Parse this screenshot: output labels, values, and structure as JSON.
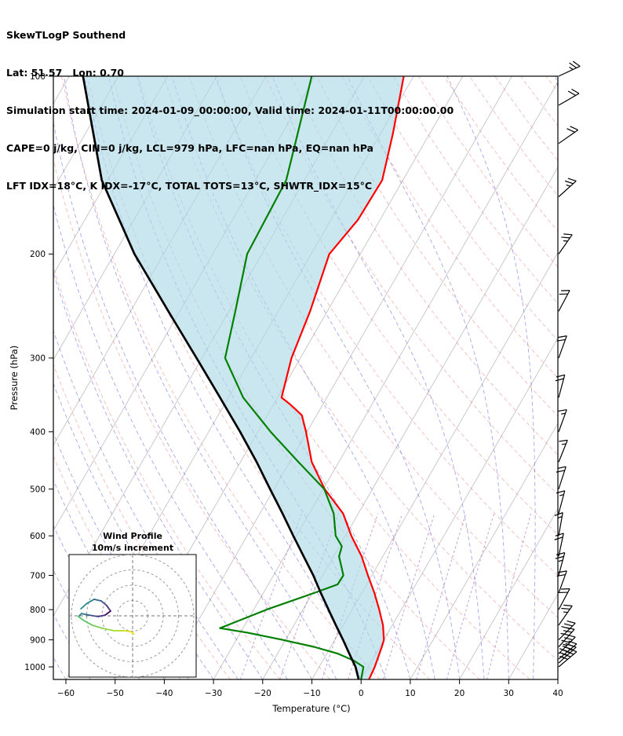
{
  "header": {
    "title": "SkewTLogP Southend",
    "location": "Lat: 51.57   Lon: 0.70",
    "times": "Simulation start time: 2024-01-09_00:00:00, Valid time: 2024-01-11T00:00:00.00",
    "indices_line1": "CAPE=0 j/kg, CIN=0 j/kg, LCL=979 hPa, LFC=nan hPa, EQ=nan hPa",
    "indices_line2": "LFT IDX=18°C, K IDX=-17°C, TOTAL TOTS=13°C, SHWTR_IDX=15°C"
  },
  "chart_data": {
    "type": "line",
    "subtype": "skewT_logP_sounding",
    "title": "SkewTLogP Southend",
    "xlabel": "Temperature (°C)",
    "ylabel": "Pressure (hPa)",
    "x_ticks": [
      -60,
      -50,
      -40,
      -30,
      -20,
      -10,
      0,
      10,
      20,
      30,
      40
    ],
    "y_ticks": [
      100,
      200,
      300,
      400,
      500,
      600,
      700,
      800,
      900,
      1000
    ],
    "xlim": [
      -62.5,
      40
    ],
    "pressure_lim": [
      100,
      1050
    ],
    "skew_rotation_deg": 30,
    "series": [
      {
        "name": "temperature",
        "color": "#ff0000",
        "units": [
          "hPa",
          "°C"
        ],
        "points": [
          [
            1050,
            1.6
          ],
          [
            1000,
            1.3
          ],
          [
            950,
            0.7
          ],
          [
            925,
            0.4
          ],
          [
            900,
            0.0
          ],
          [
            850,
            -1.9
          ],
          [
            800,
            -4.5
          ],
          [
            750,
            -7.4
          ],
          [
            700,
            -10.8
          ],
          [
            650,
            -14.3
          ],
          [
            600,
            -18.8
          ],
          [
            550,
            -23.1
          ],
          [
            500,
            -29.7
          ],
          [
            450,
            -35.5
          ],
          [
            400,
            -40.2
          ],
          [
            375,
            -43.0
          ],
          [
            360,
            -46.5
          ],
          [
            350,
            -49.2
          ],
          [
            300,
            -51.8
          ],
          [
            250,
            -53.5
          ],
          [
            200,
            -56.3
          ],
          [
            175,
            -54.5
          ],
          [
            150,
            -54.2
          ],
          [
            125,
            -57.5
          ],
          [
            100,
            -62.0
          ]
        ]
      },
      {
        "name": "dewpoint",
        "color": "#008000",
        "units": [
          "hPa",
          "°C"
        ],
        "points": [
          [
            1050,
            0.0
          ],
          [
            1000,
            -1.0
          ],
          [
            975,
            -3.8
          ],
          [
            950,
            -7.7
          ],
          [
            925,
            -13.4
          ],
          [
            900,
            -20.6
          ],
          [
            875,
            -28.6
          ],
          [
            860,
            -34.7
          ],
          [
            850,
            -33.5
          ],
          [
            800,
            -27.4
          ],
          [
            750,
            -19.7
          ],
          [
            725,
            -15.9
          ],
          [
            700,
            -15.8
          ],
          [
            650,
            -18.9
          ],
          [
            625,
            -19.5
          ],
          [
            600,
            -22.0
          ],
          [
            550,
            -25.0
          ],
          [
            500,
            -29.8
          ],
          [
            450,
            -38.2
          ],
          [
            400,
            -47.4
          ],
          [
            350,
            -57.0
          ],
          [
            300,
            -65.3
          ],
          [
            250,
            -68.7
          ],
          [
            200,
            -73.0
          ],
          [
            150,
            -73.7
          ],
          [
            100,
            -80.7
          ]
        ]
      },
      {
        "name": "parcel_profile",
        "color": "#000000",
        "units": [
          "hPa",
          "°C"
        ],
        "points": [
          [
            1050,
            -0.5
          ],
          [
            1000,
            -2.6
          ],
          [
            950,
            -5.4
          ],
          [
            900,
            -8.3
          ],
          [
            850,
            -11.5
          ],
          [
            800,
            -14.8
          ],
          [
            750,
            -18.3
          ],
          [
            700,
            -21.9
          ],
          [
            650,
            -26.1
          ],
          [
            600,
            -30.6
          ],
          [
            550,
            -35.4
          ],
          [
            500,
            -40.8
          ],
          [
            450,
            -46.7
          ],
          [
            400,
            -53.6
          ],
          [
            350,
            -61.7
          ],
          [
            300,
            -71.1
          ],
          [
            250,
            -82.3
          ],
          [
            200,
            -95.9
          ],
          [
            150,
            -111.2
          ],
          [
            100,
            -127.2
          ]
        ]
      }
    ],
    "shaded_region": {
      "between": [
        "parcel_profile",
        "temperature"
      ],
      "color": "#add8e6",
      "opacity": 0.65
    },
    "background": {
      "isotherms": {
        "color": "#8a8a8a",
        "start": -130,
        "end": 40,
        "step": 10
      },
      "dry_adiabats": {
        "color": "#e05555",
        "start": -40,
        "end": 200,
        "step": 10
      },
      "moist_adiabats": {
        "color": "#3a3ad1",
        "start": -60,
        "end": 60,
        "step": 5
      },
      "mixing_ratio_lines": {
        "color": "#8e44ad",
        "values_g_kg": [
          0.5,
          1,
          2,
          3,
          5,
          8,
          12,
          20
        ]
      }
    },
    "wind_barbs": {
      "units": "kt",
      "levels_columns": [
        "pressure_hPa",
        "speed_kt",
        "direction_deg"
      ],
      "levels": [
        [
          1000,
          40,
          50
        ],
        [
          985,
          45,
          48
        ],
        [
          970,
          40,
          50
        ],
        [
          950,
          35,
          45
        ],
        [
          925,
          30,
          42
        ],
        [
          900,
          30,
          45
        ],
        [
          850,
          25,
          35
        ],
        [
          800,
          20,
          28
        ],
        [
          750,
          20,
          20
        ],
        [
          700,
          25,
          15
        ],
        [
          650,
          20,
          12
        ],
        [
          600,
          15,
          10
        ],
        [
          550,
          15,
          15
        ],
        [
          500,
          20,
          18
        ],
        [
          450,
          15,
          22
        ],
        [
          400,
          15,
          20
        ],
        [
          350,
          20,
          15
        ],
        [
          300,
          20,
          20
        ],
        [
          250,
          20,
          28
        ],
        [
          200,
          25,
          35
        ],
        [
          160,
          25,
          48
        ],
        [
          130,
          20,
          55
        ],
        [
          112,
          20,
          60
        ],
        [
          100,
          25,
          65
        ]
      ]
    },
    "hodograph": {
      "title": "Wind Profile",
      "subtitle": "10m/s increment",
      "units": "m/s",
      "ring_interval": 10,
      "trace_uv": [
        [
          -33.8,
          4.6
        ],
        [
          -29.7,
          8.2
        ],
        [
          -25.1,
          10.8
        ],
        [
          -20.5,
          9.7
        ],
        [
          -16.9,
          6.7
        ],
        [
          -14.4,
          3.1
        ],
        [
          -17.9,
          0.5
        ],
        [
          -22.6,
          -0.5
        ],
        [
          -28.7,
          0.5
        ],
        [
          -33.3,
          1.5
        ],
        [
          -35.4,
          -0.5
        ],
        [
          -31.8,
          -3.1
        ],
        [
          -26.2,
          -6.2
        ],
        [
          -19.5,
          -8.2
        ],
        [
          -12.3,
          -9.7
        ],
        [
          -5.6,
          -9.7
        ],
        [
          -1.5,
          -10.3
        ],
        [
          1.0,
          -11.8
        ]
      ],
      "segment_colors": [
        "#21918c",
        "#26828e",
        "#31688e",
        "#3b528b",
        "#453781",
        "#440154",
        "#46327e",
        "#3d4e8a",
        "#2e6f8e",
        "#25858e",
        "#52c569",
        "#5ec962",
        "#7ad151",
        "#95d840",
        "#b5de2b",
        "#d2e21b",
        "#fde725"
      ]
    }
  }
}
